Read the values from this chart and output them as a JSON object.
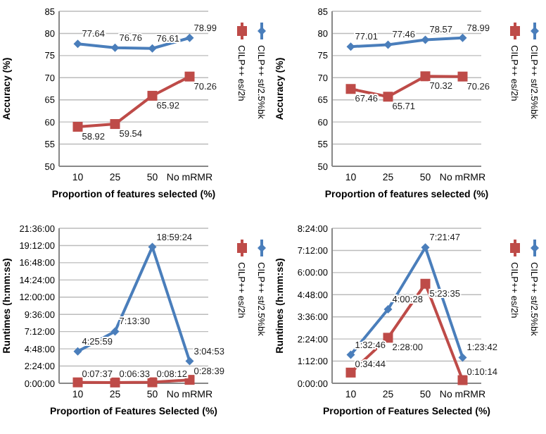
{
  "chart_data": [
    {
      "type": "line",
      "xlabel": "Proportion of features selected (%)",
      "ylabel": "Accuracy (%)",
      "categories": [
        "10",
        "25",
        "50",
        "No mRMR"
      ],
      "ylim": [
        50,
        85
      ],
      "yticks": [
        50,
        55,
        60,
        65,
        70,
        75,
        80,
        85
      ],
      "grid": "y",
      "legend": "right",
      "data_labels": true,
      "series": [
        {
          "name": "CILP++ st/2.5%bk",
          "color": "#4a7ebb",
          "marker": "diamond",
          "values": [
            77.64,
            76.76,
            76.61,
            78.99
          ]
        },
        {
          "name": "CILP++ es/2h",
          "color": "#be4b48",
          "marker": "square",
          "values": [
            58.92,
            59.54,
            65.92,
            70.26
          ]
        }
      ]
    },
    {
      "type": "line",
      "xlabel": "Proportion of features selected (%)",
      "ylabel": "Accuracy (%)",
      "categories": [
        "10",
        "25",
        "50",
        "No mRMR"
      ],
      "ylim": [
        50,
        85
      ],
      "yticks": [
        50,
        55,
        60,
        65,
        70,
        75,
        80,
        85
      ],
      "grid": "y",
      "legend": "right",
      "data_labels": true,
      "series": [
        {
          "name": "CILP++ st/2.5%bk",
          "color": "#4a7ebb",
          "marker": "diamond",
          "values": [
            77.01,
            77.46,
            78.57,
            78.99
          ]
        },
        {
          "name": "CILP++ es/2h",
          "color": "#be4b48",
          "marker": "square",
          "values": [
            67.46,
            65.71,
            70.32,
            70.26
          ]
        }
      ]
    },
    {
      "type": "line",
      "xlabel": "Proportion of Features Selected (%)",
      "ylabel": "Runtimes (h:mm:ss)",
      "categories": [
        "10",
        "25",
        "50",
        "No mRMR"
      ],
      "ylim": [
        0,
        21.6
      ],
      "yticks": [
        {
          "value": 0,
          "label": "0:00:00"
        },
        {
          "value": 2.4,
          "label": "2:24:00"
        },
        {
          "value": 4.8,
          "label": "4:48:00"
        },
        {
          "value": 7.2,
          "label": "7:12:00"
        },
        {
          "value": 9.6,
          "label": "9:36:00"
        },
        {
          "value": 12,
          "label": "12:00:00"
        },
        {
          "value": 14.4,
          "label": "14:24:00"
        },
        {
          "value": 16.8,
          "label": "16:48:00"
        },
        {
          "value": 19.2,
          "label": "19:12:00"
        },
        {
          "value": 21.6,
          "label": "21:36:00"
        }
      ],
      "grid": "y",
      "legend": "right",
      "series": [
        {
          "name": "CILP++ st/2.5%bk",
          "color": "#4a7ebb",
          "marker": "diamond",
          "values": [
            4.43306,
            7.225,
            18.99,
            3.08139
          ],
          "value_labels": [
            "4:25:59",
            "7:13:30",
            "18:59:24",
            "3:04:53"
          ]
        },
        {
          "name": "CILP++ es/2h",
          "color": "#be4b48",
          "marker": "square",
          "values": [
            0.12694,
            0.10917,
            0.13667,
            0.4775
          ],
          "value_labels": [
            "0:07:37",
            "0:06:33",
            "0:08:12",
            "0:28:39"
          ]
        }
      ]
    },
    {
      "type": "line",
      "xlabel": "Proportion of Features Selected (%)",
      "ylabel": "Runtimes (h:mm:ss)",
      "categories": [
        "10",
        "25",
        "50",
        "No mRMR"
      ],
      "ylim": [
        0,
        8.4
      ],
      "yticks": [
        {
          "value": 0,
          "label": "0:00:00"
        },
        {
          "value": 1.2,
          "label": "1:12:00"
        },
        {
          "value": 2.4,
          "label": "2:24:00"
        },
        {
          "value": 3.6,
          "label": "3:36:00"
        },
        {
          "value": 4.8,
          "label": "4:48:00"
        },
        {
          "value": 6,
          "label": "6:00:00"
        },
        {
          "value": 7.2,
          "label": "7:12:00"
        },
        {
          "value": 8.4,
          "label": "8:24:00"
        }
      ],
      "grid": "y",
      "legend": "right",
      "series": [
        {
          "name": "CILP++ st/2.5%bk",
          "color": "#4a7ebb",
          "marker": "diamond",
          "values": [
            1.54611,
            4.00778,
            7.36306,
            1.395
          ],
          "value_labels": [
            "1:32:46",
            "4:00:28",
            "7:21:47",
            "1:23:42"
          ]
        },
        {
          "name": "CILP++ es/2h",
          "color": "#be4b48",
          "marker": "square",
          "values": [
            0.57889,
            2.46667,
            5.39306,
            0.17056
          ],
          "value_labels": [
            "0:34:44",
            "2:28:00",
            "5:23:35",
            "0:10:14"
          ]
        }
      ]
    }
  ]
}
